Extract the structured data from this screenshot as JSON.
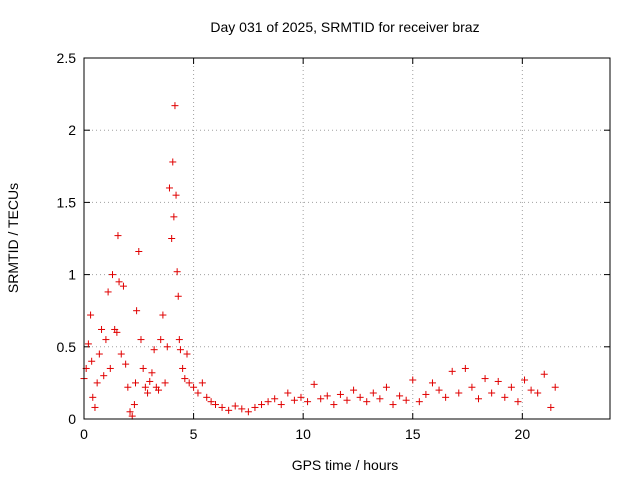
{
  "chart_data": {
    "type": "scatter",
    "title": "Day 031 of 2025, SRMTID for receiver braz",
    "xlabel": "GPS time / hours",
    "ylabel": "SRMTID / TECUs",
    "xlim": [
      0,
      24
    ],
    "ylim": [
      0,
      2.5
    ],
    "grid": true,
    "marker": "+",
    "series_color": "#e00000",
    "x_ticks": [
      {
        "value": 0,
        "label": "0"
      },
      {
        "value": 5,
        "label": "5"
      },
      {
        "value": 10,
        "label": "10"
      },
      {
        "value": 15,
        "label": "15"
      },
      {
        "value": 20,
        "label": "20"
      }
    ],
    "y_ticks": [
      {
        "value": 0,
        "label": "0"
      },
      {
        "value": 0.5,
        "label": "0.5"
      },
      {
        "value": 1,
        "label": "1"
      },
      {
        "value": 1.5,
        "label": "1.5"
      },
      {
        "value": 2,
        "label": "2"
      },
      {
        "value": 2.5,
        "label": "2.5"
      }
    ],
    "series": [
      {
        "name": "SRMTID",
        "x": [
          0.0,
          0.1,
          0.2,
          0.3,
          0.35,
          0.4,
          0.5,
          0.6,
          0.7,
          0.8,
          0.9,
          1.0,
          1.1,
          1.2,
          1.3,
          1.4,
          1.5,
          1.55,
          1.6,
          1.7,
          1.8,
          1.9,
          2.0,
          2.1,
          2.2,
          2.3,
          2.35,
          2.4,
          2.5,
          2.6,
          2.7,
          2.8,
          2.9,
          3.0,
          3.1,
          3.2,
          3.3,
          3.4,
          3.5,
          3.6,
          3.7,
          3.8,
          3.9,
          4.0,
          4.05,
          4.1,
          4.15,
          4.2,
          4.25,
          4.3,
          4.35,
          4.4,
          4.5,
          4.6,
          4.7,
          4.8,
          5.0,
          5.2,
          5.4,
          5.6,
          5.8,
          6.0,
          6.3,
          6.6,
          6.9,
          7.2,
          7.5,
          7.8,
          8.1,
          8.4,
          8.7,
          9.0,
          9.3,
          9.6,
          9.9,
          10.2,
          10.5,
          10.8,
          11.1,
          11.4,
          11.7,
          12.0,
          12.3,
          12.6,
          12.9,
          13.2,
          13.5,
          13.8,
          14.1,
          14.4,
          14.7,
          15.0,
          15.3,
          15.6,
          15.9,
          16.2,
          16.5,
          16.8,
          17.1,
          17.4,
          17.7,
          18.0,
          18.3,
          18.6,
          18.9,
          19.2,
          19.5,
          19.8,
          20.1,
          20.4,
          20.7,
          21.0,
          21.3,
          21.5
        ],
        "y": [
          0.28,
          0.35,
          0.52,
          0.72,
          0.4,
          0.15,
          0.08,
          0.25,
          0.45,
          0.62,
          0.3,
          0.55,
          0.88,
          0.35,
          1.0,
          0.62,
          0.6,
          1.27,
          0.95,
          0.45,
          0.92,
          0.38,
          0.22,
          0.05,
          0.02,
          0.1,
          0.25,
          0.75,
          1.16,
          0.55,
          0.35,
          0.22,
          0.18,
          0.26,
          0.32,
          0.48,
          0.22,
          0.2,
          0.55,
          0.72,
          0.25,
          0.5,
          1.6,
          1.25,
          1.78,
          1.4,
          2.17,
          1.55,
          1.02,
          0.85,
          0.55,
          0.48,
          0.35,
          0.28,
          0.45,
          0.25,
          0.22,
          0.18,
          0.25,
          0.15,
          0.12,
          0.1,
          0.08,
          0.06,
          0.09,
          0.07,
          0.05,
          0.08,
          0.1,
          0.12,
          0.14,
          0.1,
          0.18,
          0.13,
          0.15,
          0.12,
          0.24,
          0.14,
          0.16,
          0.1,
          0.17,
          0.13,
          0.2,
          0.15,
          0.12,
          0.18,
          0.14,
          0.22,
          0.1,
          0.16,
          0.13,
          0.27,
          0.12,
          0.17,
          0.25,
          0.2,
          0.15,
          0.33,
          0.18,
          0.35,
          0.22,
          0.14,
          0.28,
          0.18,
          0.26,
          0.15,
          0.22,
          0.12,
          0.27,
          0.2,
          0.18,
          0.31,
          0.08,
          0.22
        ]
      }
    ]
  }
}
